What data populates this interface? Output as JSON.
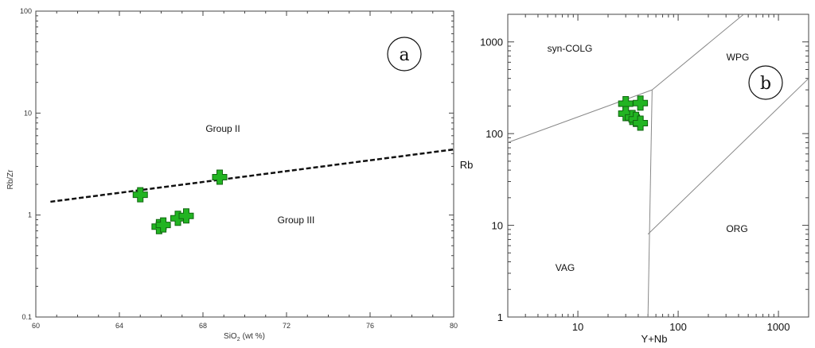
{
  "colors": {
    "marker_fill": "#22b422",
    "marker_stroke": "#116611",
    "frame": "#444444",
    "line": "#888888"
  },
  "chart_data": [
    {
      "panel_label": "a",
      "type": "scatter",
      "x_scale": "linear",
      "y_scale": "log",
      "xlim": [
        60,
        80
      ],
      "ylim": [
        0.1,
        100
      ],
      "xticks": [
        "60",
        "64",
        "68",
        "72",
        "76",
        "80"
      ],
      "yticks": [
        "0.1",
        "1",
        "10",
        "100"
      ],
      "xlabel": "SiO",
      "xlabel_sub": "2",
      "xlabel_unit": "(wt %)",
      "ylabel": "Rb/Zr",
      "regions": [
        "Group II",
        "Group III"
      ],
      "boundary": [
        [
          60.7,
          1.35
        ],
        [
          80,
          4.4
        ]
      ],
      "points": [
        {
          "x": 65.0,
          "y": 1.58
        },
        {
          "x": 68.8,
          "y": 2.35
        },
        {
          "x": 65.9,
          "y": 0.77
        },
        {
          "x": 66.1,
          "y": 0.8
        },
        {
          "x": 66.8,
          "y": 0.93
        },
        {
          "x": 67.2,
          "y": 0.98
        }
      ]
    },
    {
      "panel_label": "b",
      "type": "scatter",
      "x_scale": "log",
      "y_scale": "log",
      "xlim": [
        2,
        2000
      ],
      "ylim": [
        1,
        2000
      ],
      "xticks": [
        "10",
        "100",
        "1000"
      ],
      "yticks": [
        "1",
        "10",
        "100",
        "1000"
      ],
      "xlabel": "Y+Nb",
      "ylabel": "Rb",
      "regions": [
        "syn-COLG",
        "WPG",
        "VAG",
        "ORG"
      ],
      "boundaries": [
        [
          [
            2,
            80
          ],
          [
            55,
            300
          ]
        ],
        [
          [
            55,
            300
          ],
          [
            450,
            2000
          ]
        ],
        [
          [
            55,
            300
          ],
          [
            50,
            1
          ]
        ],
        [
          [
            50,
            8
          ],
          [
            2000,
            400
          ]
        ]
      ],
      "points": [
        {
          "x": 30,
          "y": 212
        },
        {
          "x": 42,
          "y": 215
        },
        {
          "x": 30,
          "y": 165
        },
        {
          "x": 35,
          "y": 150
        },
        {
          "x": 38,
          "y": 143
        },
        {
          "x": 42,
          "y": 130
        }
      ]
    }
  ]
}
